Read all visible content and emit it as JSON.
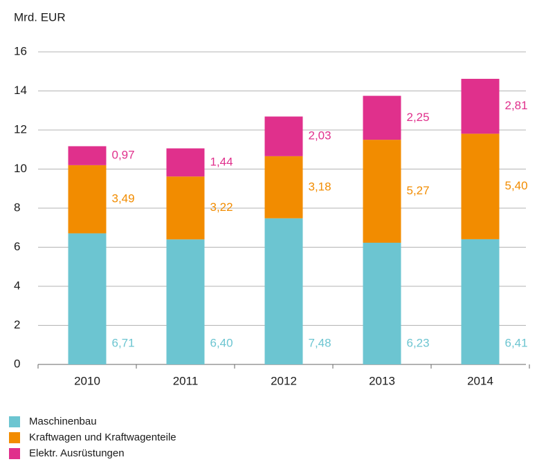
{
  "chart_data": {
    "type": "stacked_bar",
    "y_axis_label": "Mrd. EUR",
    "categories": [
      "2010",
      "2011",
      "2012",
      "2013",
      "2014"
    ],
    "series": [
      {
        "name": "Maschinenbau",
        "color": "#6cc5d1",
        "values": [
          6.71,
          6.4,
          7.48,
          6.23,
          6.41
        ],
        "value_labels": [
          "6,71",
          "6,40",
          "7,48",
          "6,23",
          "6,41"
        ]
      },
      {
        "name": "Kraftwagen und Kraftwagenteile",
        "color": "#f28c00",
        "values": [
          3.49,
          3.22,
          3.18,
          5.27,
          5.4
        ],
        "value_labels": [
          "3,49",
          "3,22",
          "3,18",
          "5,27",
          "5,40"
        ]
      },
      {
        "name": "Elektr. Ausrüstungen",
        "color": "#e0308c",
        "values": [
          0.97,
          1.44,
          2.03,
          2.25,
          2.81
        ],
        "value_labels": [
          "0,97",
          "1,44",
          "2,03",
          "2,25",
          "2,81"
        ]
      }
    ],
    "ylim": [
      0,
      16
    ],
    "yticks": [
      0,
      2,
      4,
      6,
      8,
      10,
      12,
      14,
      16
    ],
    "grid": true,
    "legend": "bottom"
  }
}
